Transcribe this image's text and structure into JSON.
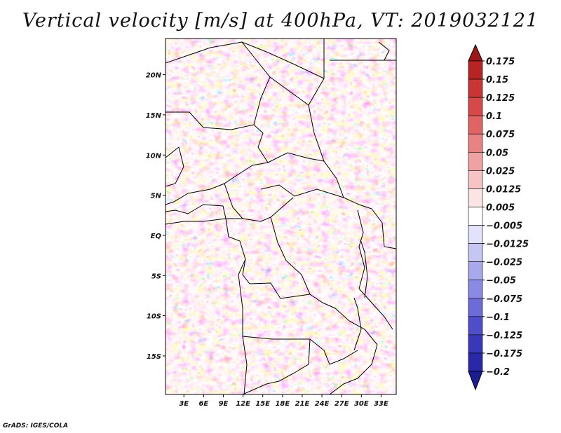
{
  "title": "Vertical velocity [m/s] at 400hPa, VT: 2019032121",
  "footer": "GrADS: IGES/COLA",
  "chart_data": {
    "type": "heatmap",
    "variable": "Vertical velocity",
    "units": "m/s",
    "level": "400hPa",
    "valid_time": "2019032121",
    "x_ticks": [
      "3E",
      "6E",
      "9E",
      "12E",
      "15E",
      "18E",
      "21E",
      "24E",
      "27E",
      "30E",
      "33E"
    ],
    "x_tick_values": [
      3,
      6,
      9,
      12,
      15,
      18,
      21,
      24,
      27,
      30,
      33
    ],
    "y_ticks": [
      "20N",
      "15N",
      "10N",
      "5N",
      "EQ",
      "5S",
      "10S",
      "15S"
    ],
    "y_tick_values": [
      20,
      15,
      10,
      5,
      0,
      -5,
      -10,
      -15
    ],
    "xlim": [
      0.2,
      35.3
    ],
    "ylim": [
      -19.8,
      24.5
    ],
    "colorbar_levels": [
      "0.175",
      "0.15",
      "0.125",
      "0.1",
      "0.075",
      "0.05",
      "0.025",
      "0.0125",
      "0.005",
      "−0.005",
      "−0.0125",
      "−0.025",
      "−0.05",
      "−0.075",
      "−0.1",
      "−0.125",
      "−0.175",
      "−0.2"
    ],
    "colorbar_colors": [
      "#a01616",
      "#b72424",
      "#c93434",
      "#d74848",
      "#e16464",
      "#e98282",
      "#f0a2a2",
      "#f6c4c4",
      "#fbe4e4",
      "#ffffff",
      "#e2e2fa",
      "#c6c6f2",
      "#a8a8ec",
      "#8a8ae4",
      "#6c6cd8",
      "#4e4ecb",
      "#3838bb",
      "#2828a8",
      "#1c1c95"
    ]
  }
}
